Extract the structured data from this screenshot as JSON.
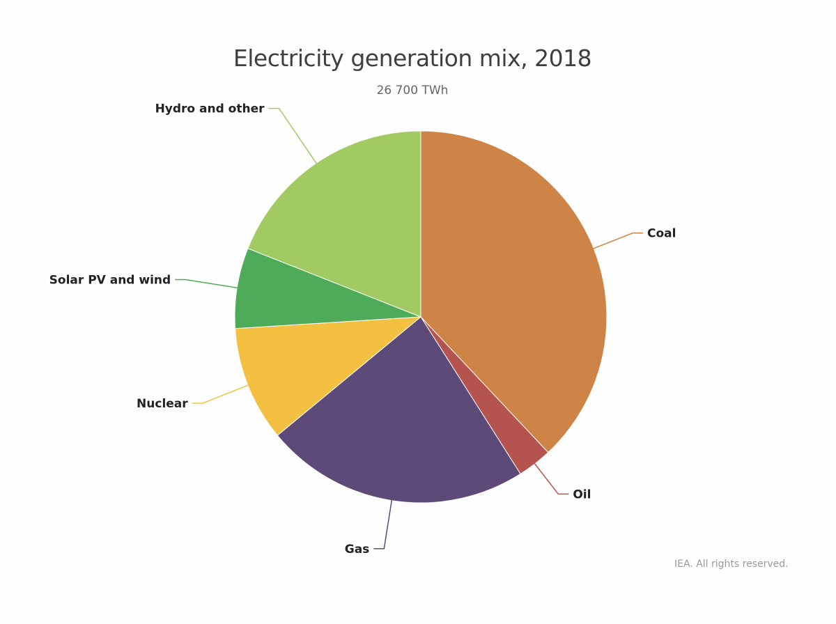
{
  "chart_data": {
    "type": "pie",
    "title": "Electricity generation mix, 2018",
    "subtitle": "26 700 TWh",
    "credit": "IEA. All rights reserved.",
    "unit": "%",
    "slices": [
      {
        "label": "Coal",
        "value": 38,
        "color": "#CD8446"
      },
      {
        "label": "Oil",
        "value": 3,
        "color": "#B5534E"
      },
      {
        "label": "Gas",
        "value": 23,
        "color": "#5D4A78"
      },
      {
        "label": "Nuclear",
        "value": 10,
        "color": "#F4C042"
      },
      {
        "label": "Solar PV and wind",
        "value": 7,
        "color": "#4EAB5A"
      },
      {
        "label": "Hydro and other",
        "value": 19,
        "color": "#A1CB62"
      }
    ]
  }
}
